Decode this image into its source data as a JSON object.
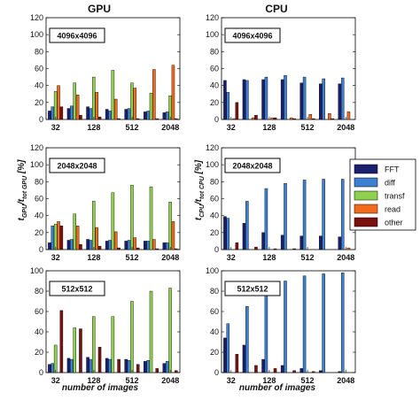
{
  "column_titles": [
    "GPU",
    "CPU"
  ],
  "legend": {
    "entries": [
      {
        "label": "FFT",
        "color": "#1a1f6e"
      },
      {
        "label": "diff",
        "color": "#3d7fd0"
      },
      {
        "label": "transf",
        "color": "#8fd14f"
      },
      {
        "label": "read",
        "color": "#f26a1b"
      },
      {
        "label": "other",
        "color": "#7a1111"
      }
    ]
  },
  "chart_data": [
    {
      "type": "bar",
      "column": "GPU",
      "label": "4096x4096",
      "x_tick_labels": [
        "32",
        "128",
        "512",
        "2048"
      ],
      "ylim": [
        0,
        120
      ],
      "yticks": [
        0,
        20,
        40,
        60,
        80,
        100,
        120
      ],
      "groups": 7,
      "series": [
        {
          "name": "FFT",
          "values": [
            10,
            13,
            15,
            12,
            12,
            9,
            8
          ]
        },
        {
          "name": "diff",
          "values": [
            15,
            16,
            13,
            10,
            13,
            10,
            9
          ]
        },
        {
          "name": "transf",
          "values": [
            33,
            43,
            50,
            58,
            43,
            31,
            28
          ]
        },
        {
          "name": "read",
          "values": [
            40,
            29,
            32,
            24,
            37,
            59,
            64
          ]
        },
        {
          "name": "other",
          "values": [
            15,
            5,
            3,
            1,
            1,
            1,
            1
          ]
        }
      ]
    },
    {
      "type": "bar",
      "column": "CPU",
      "label": "4096x4096",
      "x_tick_labels": [
        "32",
        "128",
        "512",
        "2048"
      ],
      "ylim": [
        0,
        120
      ],
      "yticks": [
        0,
        20,
        40,
        60,
        80,
        100,
        120
      ],
      "groups": 7,
      "series": [
        {
          "name": "FFT",
          "values": [
            46,
            47,
            47,
            47,
            43,
            42,
            42
          ]
        },
        {
          "name": "diff",
          "values": [
            32,
            46,
            50,
            52,
            50,
            48,
            49
          ]
        },
        {
          "name": "transf",
          "values": [
            0,
            0,
            0,
            0,
            0,
            0,
            0
          ]
        },
        {
          "name": "read",
          "values": [
            1,
            2,
            2,
            2,
            6,
            7,
            9
          ]
        },
        {
          "name": "other",
          "values": [
            20,
            5,
            2,
            1,
            1,
            1,
            0
          ]
        }
      ]
    },
    {
      "type": "bar",
      "column": "GPU",
      "label": "2048x2048",
      "x_tick_labels": [
        "32",
        "128",
        "512",
        "2048"
      ],
      "ylim": [
        0,
        120
      ],
      "yticks": [
        0,
        20,
        40,
        60,
        80,
        100,
        120
      ],
      "groups": 7,
      "series": [
        {
          "name": "FFT",
          "values": [
            8,
            11,
            12,
            10,
            10,
            10,
            8
          ]
        },
        {
          "name": "diff",
          "values": [
            28,
            12,
            11,
            11,
            11,
            10,
            8
          ]
        },
        {
          "name": "transf",
          "values": [
            30,
            42,
            57,
            67,
            76,
            74,
            56
          ]
        },
        {
          "name": "read",
          "values": [
            33,
            28,
            26,
            21,
            14,
            12,
            33
          ]
        },
        {
          "name": "other",
          "values": [
            28,
            6,
            4,
            2,
            2,
            1,
            1
          ]
        }
      ]
    },
    {
      "type": "bar",
      "column": "CPU",
      "label": "2048x2048",
      "x_tick_labels": [
        "32",
        "128",
        "512",
        "2048"
      ],
      "ylim": [
        0,
        120
      ],
      "yticks": [
        0,
        20,
        40,
        60,
        80,
        100,
        120
      ],
      "groups": 7,
      "series": [
        {
          "name": "FFT",
          "values": [
            39,
            31,
            20,
            17,
            16,
            16,
            15
          ]
        },
        {
          "name": "diff",
          "values": [
            37,
            57,
            72,
            78,
            82,
            83,
            83
          ]
        },
        {
          "name": "transf",
          "values": [
            0,
            0,
            0,
            0,
            0,
            0,
            0
          ]
        },
        {
          "name": "read",
          "values": [
            0,
            0,
            0,
            0,
            0,
            0,
            2
          ]
        },
        {
          "name": "other",
          "values": [
            8,
            3,
            1,
            1,
            0,
            0,
            0
          ]
        }
      ]
    },
    {
      "type": "bar",
      "column": "GPU",
      "label": "512x512",
      "x_tick_labels": [
        "32",
        "128",
        "512",
        "2048"
      ],
      "ylim": [
        0,
        100
      ],
      "yticks": [
        0,
        20,
        40,
        60,
        80,
        100
      ],
      "groups": 7,
      "series": [
        {
          "name": "FFT",
          "values": [
            8,
            14,
            15,
            14,
            13,
            11,
            9
          ]
        },
        {
          "name": "diff",
          "values": [
            9,
            13,
            13,
            13,
            12,
            12,
            11
          ]
        },
        {
          "name": "transf",
          "values": [
            27,
            44,
            55,
            55,
            70,
            80,
            83
          ]
        },
        {
          "name": "read",
          "values": [
            0,
            0,
            0,
            0,
            0,
            0,
            0
          ]
        },
        {
          "name": "other",
          "values": [
            61,
            43,
            25,
            13,
            8,
            4,
            2
          ]
        }
      ]
    },
    {
      "type": "bar",
      "column": "CPU",
      "label": "512x512",
      "x_tick_labels": [
        "32",
        "128",
        "512",
        "2048"
      ],
      "ylim": [
        0,
        100
      ],
      "yticks": [
        0,
        20,
        40,
        60,
        80,
        100
      ],
      "groups": 7,
      "series": [
        {
          "name": "FFT",
          "values": [
            34,
            27,
            13,
            7,
            4,
            2,
            1
          ]
        },
        {
          "name": "diff",
          "values": [
            48,
            65,
            82,
            90,
            95,
            97,
            98
          ]
        },
        {
          "name": "transf",
          "values": [
            0,
            0,
            0,
            0,
            0,
            0,
            0
          ]
        },
        {
          "name": "read",
          "values": [
            0,
            0,
            0,
            0,
            0,
            0,
            0
          ]
        },
        {
          "name": "other",
          "values": [
            18,
            7,
            4,
            2,
            1,
            0,
            0
          ]
        }
      ]
    }
  ],
  "axis_labels": {
    "gpu_ylabel": "t",
    "gpu_ylabel_sub1": "GPU",
    "gpu_ylabel_mid": "/t",
    "gpu_ylabel_sub2": "tot GPU",
    "gpu_ylabel_end": " [%]",
    "cpu_ylabel": "t",
    "cpu_ylabel_sub1": "CPU",
    "cpu_ylabel_mid": "/t",
    "cpu_ylabel_sub2": "tot CPU",
    "cpu_ylabel_end": " [%]",
    "xlabel": "number of images"
  }
}
